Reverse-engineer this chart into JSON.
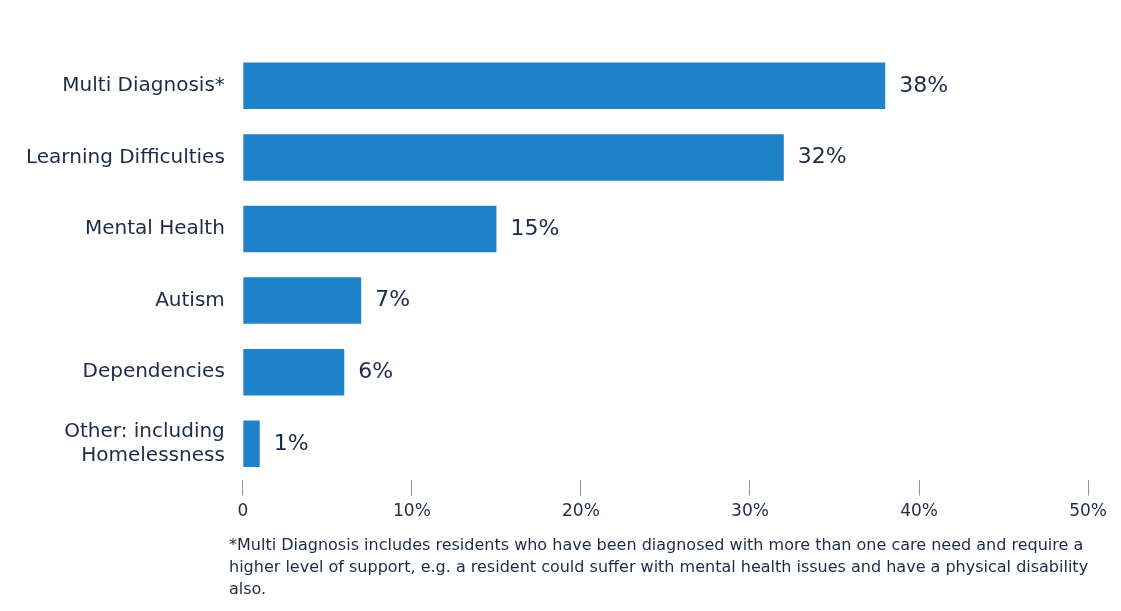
{
  "chart_data": {
    "type": "bar",
    "orientation": "horizontal",
    "categories": [
      "Multi Diagnosis*",
      "Learning Difficulties",
      "Mental Health",
      "Autism",
      "Dependencies",
      "Other: including\nHomelessness"
    ],
    "values": [
      38,
      32,
      15,
      7,
      6,
      1
    ],
    "value_labels": [
      "38%",
      "32%",
      "15%",
      "7%",
      "6%",
      "1%"
    ],
    "color": "#1e82c8",
    "xlim": [
      0,
      50
    ],
    "xticks": [
      0,
      {
        "value": 10,
        "label": "10%"
      },
      {
        "value": 20,
        "label": "20%"
      },
      {
        "value": 30,
        "label": "30%"
      },
      {
        "value": 40,
        "label": "40%"
      },
      {
        "value": 50,
        "label": "50%"
      }
    ],
    "grid": false,
    "legend": false,
    "annotations": [
      "*Multi Diagnosis includes residents who have been diagnosed with more than one care need and require a higher level of support, e.g. a resident could suffer with mental health issues and have a physical disability also."
    ]
  }
}
